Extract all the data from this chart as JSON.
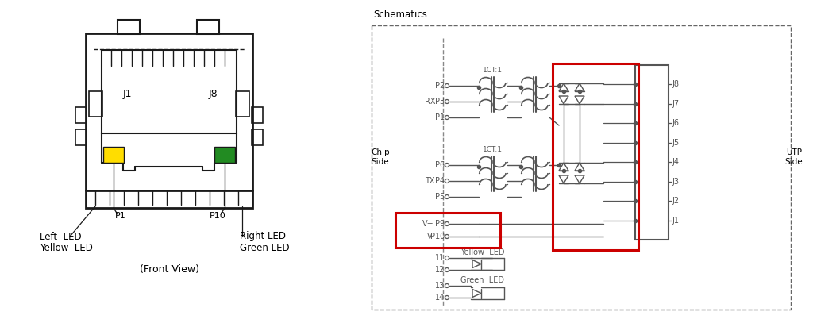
{
  "bg_color": "#ffffff",
  "line_color": "#1a1a1a",
  "schematic_line_color": "#555555",
  "red_box_color": "#cc0000",
  "yellow_led_color": "#ffdd00",
  "green_led_color": "#228B22",
  "title_schematics": "Schematics",
  "label_front_view": "(Front View)",
  "label_j1": "J1",
  "label_j8": "J8",
  "label_p1": "P1",
  "label_p10": "P10",
  "label_left_led_1": "Left  LED",
  "label_left_led_2": "Yellow  LED",
  "label_right_led_1": "Right LED",
  "label_right_led_2": "Green LED",
  "label_1ct1": "1CT:1",
  "label_yellow_led_sch": "Yellow  LED",
  "label_green_led_sch": "Green  LED",
  "j_labels": [
    "J8",
    "J7",
    "J6",
    "J5",
    "J4",
    "J3",
    "J2",
    "J1"
  ]
}
